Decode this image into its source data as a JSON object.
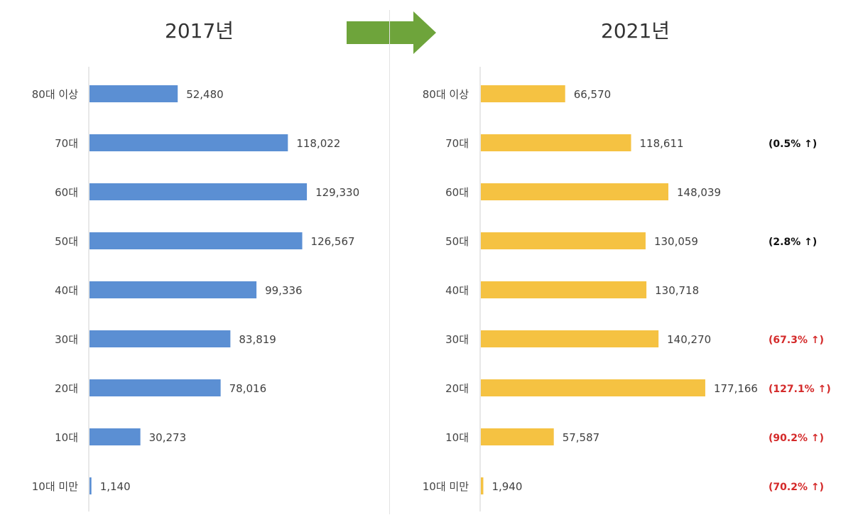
{
  "chart_data": [
    {
      "type": "bar",
      "orientation": "horizontal",
      "title": "2017년",
      "categories": [
        "80대 이상",
        "70대",
        "60대",
        "50대",
        "40대",
        "30대",
        "20대",
        "10대",
        "10대 미만"
      ],
      "values": [
        52480,
        118022,
        129330,
        126567,
        99336,
        83819,
        78016,
        30273,
        1140
      ],
      "value_labels": [
        "52,480",
        "118,022",
        "129,330",
        "126,567",
        "99,336",
        "83,819",
        "78,016",
        "30,273",
        "1,140"
      ],
      "color": "#5b8fd3",
      "xlim": [
        0,
        240000
      ]
    },
    {
      "type": "bar",
      "orientation": "horizontal",
      "title": "2021년",
      "categories": [
        "80대 이상",
        "70대",
        "60대",
        "50대",
        "40대",
        "30대",
        "20대",
        "10대",
        "10대 미만"
      ],
      "values": [
        66570,
        118611,
        148039,
        130059,
        130718,
        140270,
        177166,
        57587,
        1940
      ],
      "value_labels": [
        "66,570",
        "118,611",
        "148,039",
        "130,059",
        "130,718",
        "140,270",
        "177,166",
        "57,587",
        "1,940"
      ],
      "annotations": [
        "",
        "(0.5% ↑)",
        "",
        "(2.8% ↑)",
        "",
        "(67.3% ↑)",
        "(127.1% ↑)",
        "(90.2% ↑)",
        "(70.2% ↑)"
      ],
      "annotation_colors": [
        "",
        "#111111",
        "",
        "#111111",
        "",
        "#d42a2a",
        "#d42a2a",
        "#d42a2a",
        "#d42a2a"
      ],
      "color": "#f5c242",
      "xlim": [
        0,
        240000
      ]
    }
  ],
  "colors": {
    "arrow": "#6ea43b",
    "axis": "#d0d0d0"
  }
}
